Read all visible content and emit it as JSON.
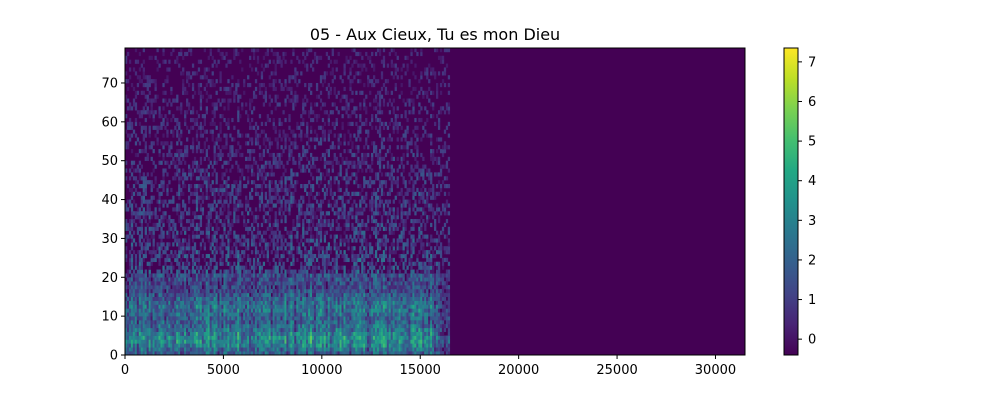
{
  "chart_data": {
    "type": "heatmap",
    "title": "05 - Aux Cieux, Tu es mon Dieu",
    "xlabel": "",
    "ylabel": "",
    "xlim": [
      0,
      31500
    ],
    "ylim": [
      0,
      79
    ],
    "x_ticks": [
      0,
      5000,
      10000,
      15000,
      20000,
      25000,
      30000
    ],
    "x_tick_labels": [
      "0",
      "5000",
      "10000",
      "15000",
      "20000",
      "25000",
      "30000"
    ],
    "y_ticks": [
      0,
      10,
      20,
      30,
      40,
      50,
      60,
      70
    ],
    "y_tick_labels": [
      "0",
      "10",
      "20",
      "30",
      "40",
      "50",
      "60",
      "70"
    ],
    "colorbar": {
      "range": [
        -0.4,
        7.35
      ],
      "ticks": [
        0,
        1,
        2,
        3,
        4,
        5,
        6,
        7
      ],
      "tick_labels": [
        "0",
        "1",
        "2",
        "3",
        "4",
        "5",
        "6",
        "7"
      ],
      "colormap": "viridis"
    },
    "signal_end_x": 16500,
    "background_value": -0.4,
    "band_profile": {
      "rows": [
        0,
        2,
        4,
        6,
        9,
        12,
        14,
        17,
        21,
        25,
        29,
        33,
        37,
        41,
        45,
        50,
        55,
        60,
        65,
        70,
        75,
        79
      ],
      "mean_values": [
        2.2,
        3.6,
        4.6,
        3.6,
        2.6,
        3.4,
        2.8,
        1.7,
        1.9,
        1.6,
        1.4,
        1.2,
        1.1,
        1.0,
        0.9,
        0.6,
        0.4,
        0.3,
        0.1,
        -0.1,
        -0.2,
        -0.3
      ]
    },
    "time_profile": {
      "x": [
        0,
        1000,
        2500,
        4000,
        6000,
        8000,
        10000,
        12000,
        14000,
        15500,
        16500
      ],
      "relative_energy": [
        0.7,
        0.85,
        0.8,
        0.9,
        0.95,
        0.85,
        0.9,
        0.92,
        0.95,
        0.9,
        0.4
      ]
    }
  }
}
